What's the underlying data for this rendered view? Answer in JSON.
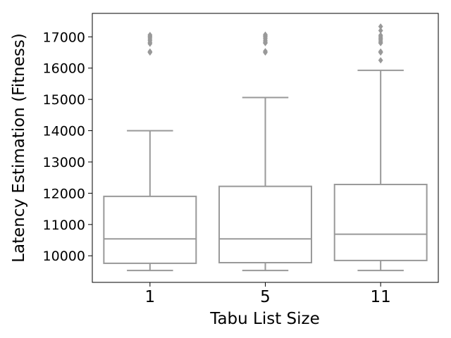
{
  "chart_data": {
    "type": "box",
    "xlabel": "Tabu List Size",
    "ylabel": "Latency Estimation (Fitness)",
    "categories": [
      "1",
      "5",
      "11"
    ],
    "ylim": [
      9150,
      17750
    ],
    "yticks": [
      10000,
      11000,
      12000,
      13000,
      14000,
      15000,
      16000,
      17000
    ],
    "ytick_labels": [
      "10000",
      "11000",
      "12000",
      "13000",
      "14000",
      "15000",
      "16000",
      "17000"
    ],
    "grid": false,
    "box_color": "#999999",
    "boxes": [
      {
        "category": "1",
        "whisker_low": 9530,
        "q1": 9760,
        "median": 10540,
        "q3": 11900,
        "whisker_high": 14000,
        "outliers": [
          16500,
          16530,
          16780,
          16820,
          16880,
          16930,
          16980,
          17020,
          17060
        ]
      },
      {
        "category": "5",
        "whisker_low": 9530,
        "q1": 9780,
        "median": 10540,
        "q3": 12220,
        "whisker_high": 15060,
        "outliers": [
          16500,
          16540,
          16800,
          16830,
          16880,
          16940,
          16990,
          17030,
          17070
        ]
      },
      {
        "category": "11",
        "whisker_low": 9530,
        "q1": 9850,
        "median": 10690,
        "q3": 12280,
        "whisker_high": 15930,
        "outliers": [
          16250,
          16500,
          16530,
          16800,
          16840,
          16900,
          16950,
          17000,
          17050,
          17200,
          17330
        ]
      }
    ]
  }
}
